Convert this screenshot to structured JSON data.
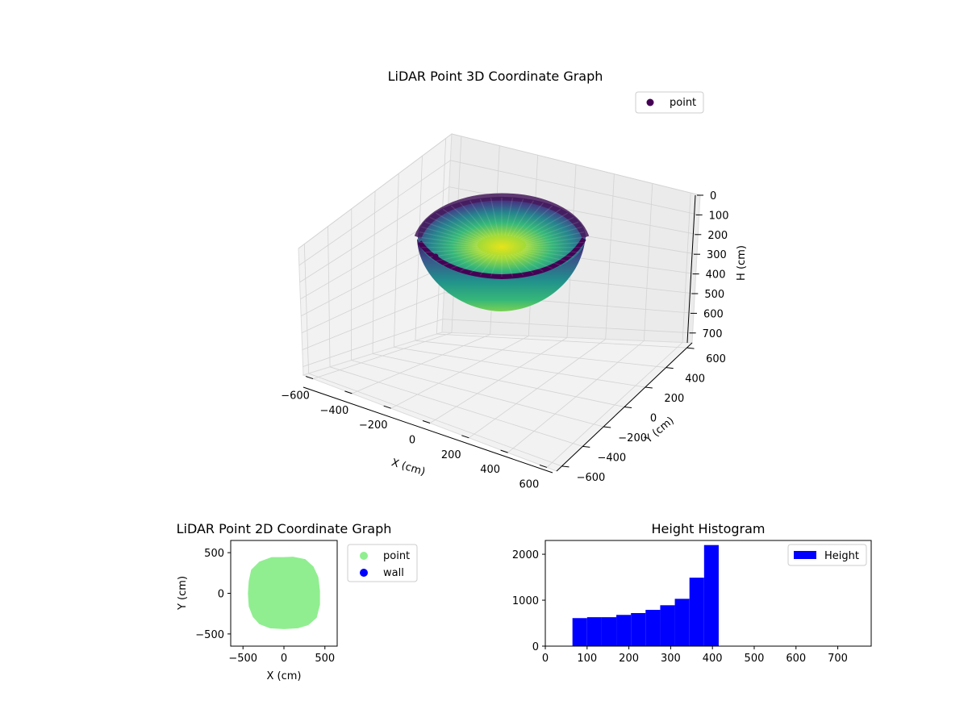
{
  "chart_data": [
    {
      "type": "scatter",
      "projection": "3d",
      "title": "LiDAR Point 3D Coordinate Graph",
      "xlabel": "X (cm)",
      "ylabel": "Y (cm)",
      "zlabel": "H (cm)",
      "xlim": [
        -650,
        650
      ],
      "ylim": [
        -650,
        650
      ],
      "zlim": [
        750,
        0
      ],
      "xticks": [
        -600,
        -400,
        -200,
        0,
        200,
        400,
        600
      ],
      "yticks": [
        -600,
        -400,
        -200,
        0,
        200,
        400,
        600
      ],
      "zticks": [
        0,
        100,
        200,
        300,
        400,
        500,
        600,
        700
      ],
      "legend": {
        "location": "top-right",
        "entries": [
          {
            "label": "point",
            "color": "#440154"
          }
        ]
      },
      "shape": "bowl",
      "rim_radius": 450,
      "rim_height": 20,
      "center_height": 410,
      "colormap": [
        "#440154",
        "#3b528b",
        "#21918c",
        "#5ec962",
        "#fde725"
      ]
    },
    {
      "type": "scatter",
      "title": "LiDAR Point 2D Coordinate Graph",
      "xlabel": "X (cm)",
      "ylabel": "Y (cm)",
      "xlim": [
        -650,
        650
      ],
      "ylim": [
        -650,
        650
      ],
      "xticks": [
        -500,
        0,
        500
      ],
      "yticks": [
        -500,
        0,
        500
      ],
      "legend": {
        "location": "outside-right",
        "entries": [
          {
            "label": "point",
            "color": "#90ee90"
          },
          {
            "label": "wall",
            "color": "#0000ff"
          }
        ]
      },
      "series": [
        {
          "name": "point",
          "color": "#90ee90",
          "outline": [
            [
              -440,
              0
            ],
            [
              -430,
              -160
            ],
            [
              -380,
              -290
            ],
            [
              -300,
              -380
            ],
            [
              -170,
              -430
            ],
            [
              0,
              -440
            ],
            [
              170,
              -430
            ],
            [
              300,
              -390
            ],
            [
              400,
              -300
            ],
            [
              440,
              -140
            ],
            [
              440,
              30
            ],
            [
              420,
              200
            ],
            [
              360,
              330
            ],
            [
              260,
              420
            ],
            [
              110,
              450
            ],
            [
              0,
              445
            ],
            [
              -150,
              445
            ],
            [
              -300,
              390
            ],
            [
              -400,
              290
            ],
            [
              -430,
              150
            ]
          ]
        },
        {
          "name": "wall",
          "color": "#0000ff",
          "outline": []
        }
      ]
    },
    {
      "type": "bar",
      "subtype": "histogram",
      "title": "Height Histogram",
      "xlabel": "",
      "ylabel": "",
      "xlim": [
        0,
        780
      ],
      "ylim": [
        0,
        2300
      ],
      "xticks": [
        0,
        100,
        200,
        300,
        400,
        500,
        600,
        700
      ],
      "yticks": [
        0,
        1000,
        2000
      ],
      "legend": {
        "location": "top-right",
        "entries": [
          {
            "label": "Height",
            "color": "#0000ff"
          }
        ]
      },
      "color": "#0000ff",
      "bins": [
        {
          "start": 65,
          "end": 100,
          "value": 610
        },
        {
          "start": 100,
          "end": 135,
          "value": 630
        },
        {
          "start": 135,
          "end": 170,
          "value": 630
        },
        {
          "start": 170,
          "end": 205,
          "value": 680
        },
        {
          "start": 205,
          "end": 240,
          "value": 720
        },
        {
          "start": 240,
          "end": 275,
          "value": 790
        },
        {
          "start": 275,
          "end": 310,
          "value": 890
        },
        {
          "start": 310,
          "end": 345,
          "value": 1030
        },
        {
          "start": 345,
          "end": 380,
          "value": 1490
        },
        {
          "start": 380,
          "end": 415,
          "value": 2200
        }
      ]
    }
  ]
}
